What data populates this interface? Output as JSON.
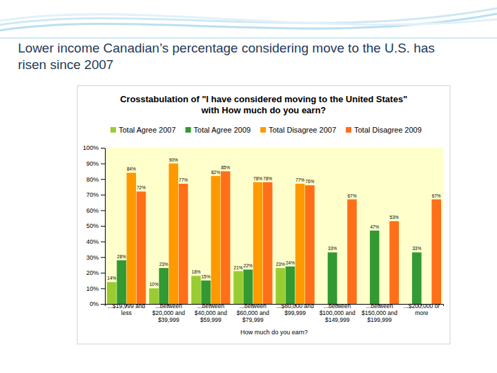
{
  "header": {
    "title": "Lower income Canadian’s percentage considering move to the U.S. has risen since 2007"
  },
  "chart_data": {
    "type": "bar",
    "title": "Crosstabulation of \"I have considered moving to the United States\" with How much do you earn?",
    "x_label": "How much do you earn?",
    "categories": [
      "...$19,999 and less",
      "...between $20,000 and $39,999",
      "...between $40,000 and $59,999",
      "...between $60,000 and $79,999",
      "...$80,000 and $99,999",
      "...between $100,000 and $149,999",
      "...between $150,000 and $199,999",
      "...$200,000 or more"
    ],
    "series": [
      {
        "name": "Total Agree 2007",
        "color": "#99cc33",
        "values": [
          14,
          10,
          18,
          21,
          23,
          null,
          null,
          null
        ],
        "value_labels": [
          "14%",
          "10%",
          "18%",
          "21%",
          "23%",
          null,
          null,
          null
        ]
      },
      {
        "name": "Total Agree 2009",
        "color": "#339933",
        "values": [
          28,
          23,
          15,
          22,
          24,
          33,
          47,
          33
        ],
        "value_labels": [
          "28%",
          "23%",
          "15%",
          "22%",
          "24%",
          "33%",
          "47%",
          "33%"
        ]
      },
      {
        "name": "Total Disagree 2007",
        "color": "#ff9900",
        "values": [
          84,
          90,
          82,
          78,
          77,
          null,
          null,
          null
        ],
        "value_labels": [
          "84%",
          "90%",
          "82%",
          "78%",
          "77%",
          null,
          null,
          null
        ]
      },
      {
        "name": "Total Disagree 2009",
        "color": "#ff6f1a",
        "values": [
          72,
          77,
          85,
          78,
          76,
          67,
          53,
          67
        ],
        "value_labels": [
          "72%",
          "77%",
          "85%",
          "78%",
          "76%",
          "67%",
          "53%",
          "67%"
        ]
      }
    ],
    "ylim": [
      0,
      100
    ],
    "yticks": [
      {
        "value": 0,
        "label": "0%"
      },
      {
        "value": 10,
        "label": "10%"
      },
      {
        "value": 20,
        "label": "20%"
      },
      {
        "value": 30,
        "label": "30%"
      },
      {
        "value": 40,
        "label": "40%"
      },
      {
        "value": 50,
        "label": "50%"
      },
      {
        "value": 60,
        "label": "60%"
      },
      {
        "value": 70,
        "label": "70%"
      },
      {
        "value": 80,
        "label": "80%"
      },
      {
        "value": 90,
        "label": "90%"
      },
      {
        "value": 100,
        "label": "100%"
      }
    ],
    "grid": false,
    "legend": "top",
    "data_labels": true
  }
}
